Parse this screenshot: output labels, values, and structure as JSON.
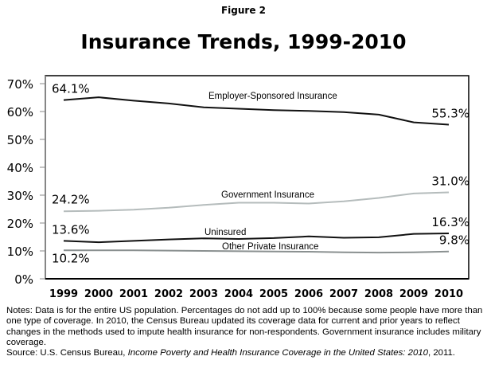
{
  "figure_label": "Figure 2",
  "chart_data": {
    "type": "line",
    "title": "Insurance Trends, 1999-2010",
    "xlabel": "",
    "ylabel": "",
    "x": [
      "1999",
      "2000",
      "2001",
      "2002",
      "2003",
      "2004",
      "2005",
      "2006",
      "2007",
      "2008",
      "2009",
      "2010"
    ],
    "ylim": [
      0,
      70
    ],
    "yticks": [
      "0%",
      "10%",
      "20%",
      "30%",
      "40%",
      "50%",
      "60%",
      "70%"
    ],
    "grid": false,
    "series": [
      {
        "name": "Employer-Sponsored Insurance",
        "color": "#111111",
        "values": [
          64.1,
          65.1,
          63.9,
          62.9,
          61.5,
          61.0,
          60.5,
          60.2,
          59.8,
          58.9,
          56.1,
          55.3
        ],
        "start_label": "64.1%",
        "end_label": "55.3%"
      },
      {
        "name": "Government Insurance",
        "color": "#b5bcbc",
        "values": [
          24.2,
          24.4,
          24.8,
          25.5,
          26.5,
          27.3,
          27.3,
          27.0,
          27.8,
          29.0,
          30.6,
          31.0
        ],
        "start_label": "24.2%",
        "end_label": "31.0%"
      },
      {
        "name": "Uninsured",
        "color": "#111111",
        "values": [
          13.6,
          13.1,
          13.6,
          14.1,
          14.5,
          14.3,
          14.6,
          15.2,
          14.7,
          14.9,
          16.1,
          16.3
        ],
        "start_label": "13.6%",
        "end_label": "16.3%"
      },
      {
        "name": "Other Private Insurance",
        "color": "#8a9090",
        "values": [
          10.2,
          10.2,
          10.2,
          10.1,
          10.0,
          9.9,
          9.8,
          9.7,
          9.5,
          9.4,
          9.5,
          9.8
        ],
        "start_label": "10.2%",
        "end_label": "9.8%"
      }
    ]
  },
  "notes": {
    "text": "Notes: Data is for the entire US population.  Percentages do not add up to 100% because some people have more than one type of coverage.  In 2010, the Census Bureau updated its coverage data for current and prior years to reflect changes in the methods used to impute health insurance for non-respondents.  Government insurance includes military coverage.",
    "source_prefix": "Source: U.S. Census Bureau, ",
    "source_title": "Income Poverty and Health Insurance Coverage in the United States: 2010",
    "source_suffix": ", 2011."
  }
}
